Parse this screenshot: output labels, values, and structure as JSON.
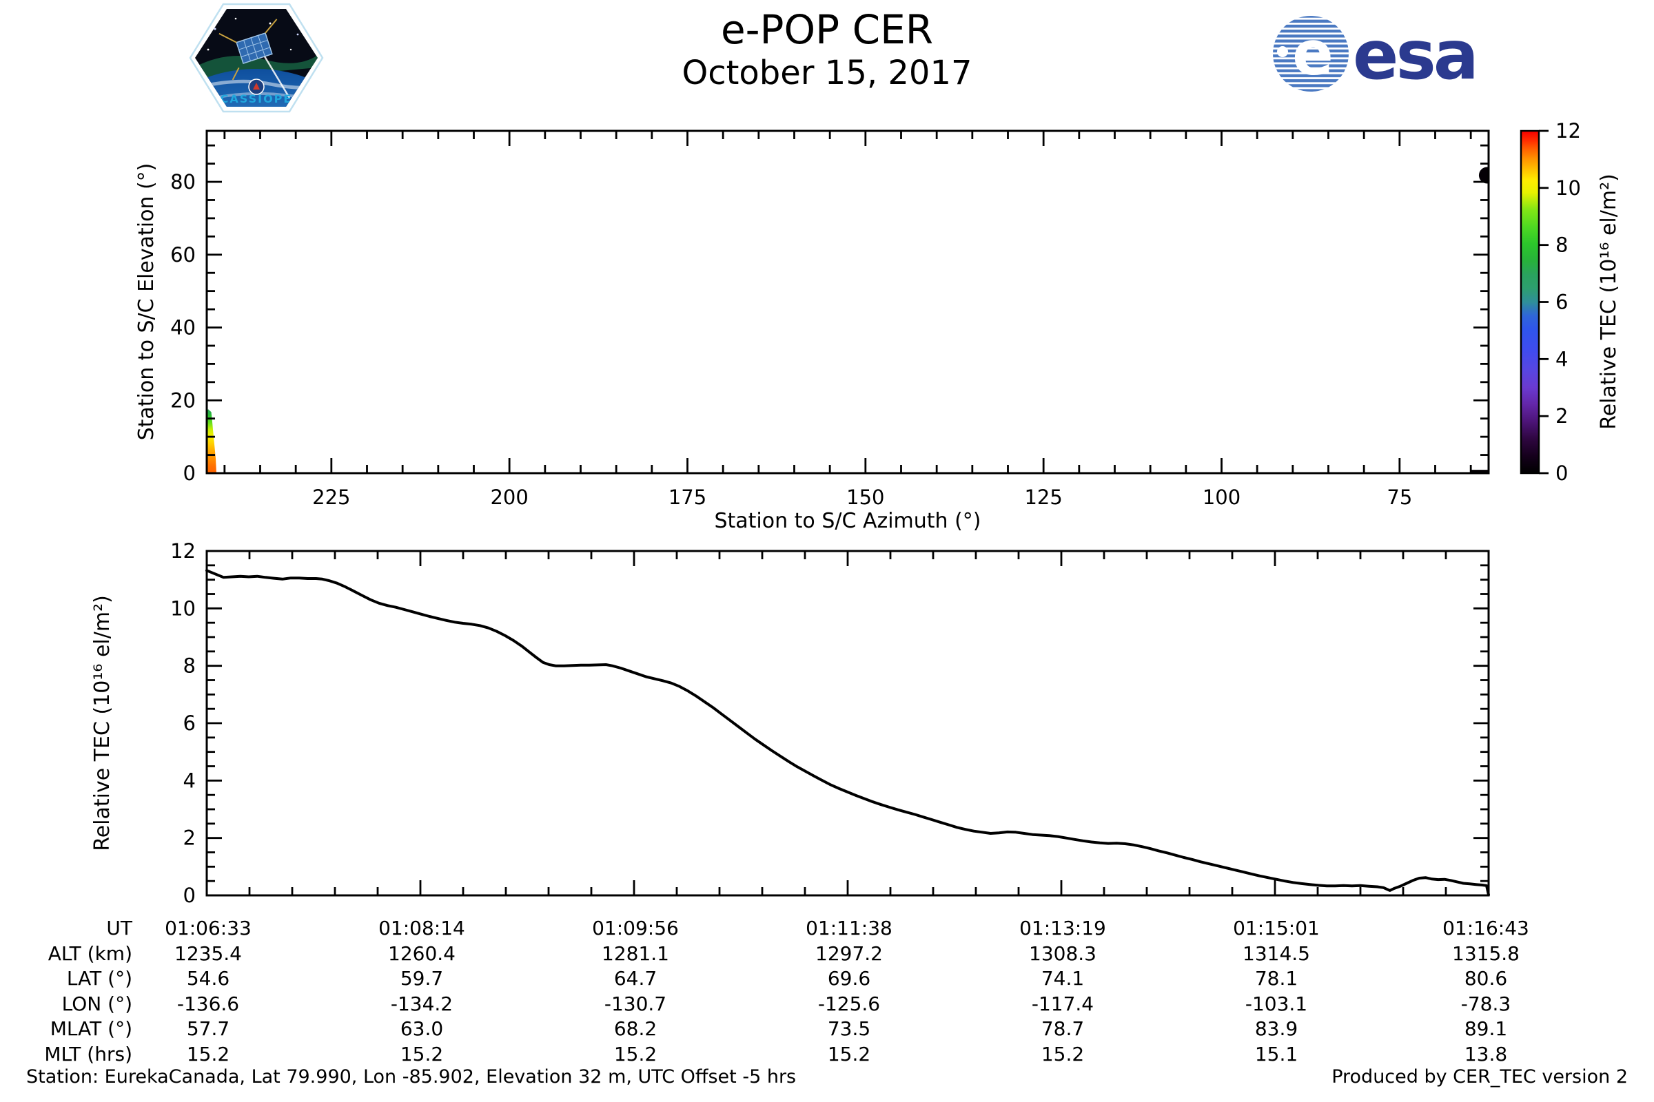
{
  "header": {
    "title": "e-POP CER",
    "subtitle": "October 15, 2017",
    "cassiope_logo": {
      "label": "CASSIOPE"
    },
    "esa_logo": {
      "text": "esa",
      "color": "#2b3a8f",
      "stripe_color": "#4a79c2"
    }
  },
  "footer": {
    "station_info": "Station: EurekaCanada, Lat 79.990, Lon -85.902, Elevation 32 m, UTC Offset -5 hrs",
    "produced_by": "Produced by CER_TEC version 2"
  },
  "chart_data": [
    {
      "type": "scatter",
      "name": "elevation-vs-azimuth",
      "xlabel": "Station to S/C Azimuth (°)",
      "ylabel": "Station to S/C Elevation (°)",
      "xlim": [
        242.5,
        62.5
      ],
      "x_reversed": true,
      "ylim": [
        0,
        94
      ],
      "xticks": [
        225,
        200,
        175,
        150,
        125,
        100,
        75
      ],
      "x_minor_step": 5,
      "yticks": [
        0,
        20,
        40,
        60,
        80
      ],
      "y_minor_step": 5,
      "grid": false,
      "series": {
        "ascending_strip": {
          "azimuth": 244.3,
          "points_el_tec": [
            [
              0,
              11.35
            ],
            [
              2,
              11.25
            ],
            [
              4,
              11.05
            ],
            [
              6,
              10.85
            ],
            [
              8,
              10.55
            ],
            [
              10,
              10.15
            ],
            [
              12,
              9.65
            ],
            [
              13.5,
              9.1
            ],
            [
              15,
              8.3
            ],
            [
              16,
              7.7
            ],
            [
              16.8,
              7.2
            ]
          ]
        },
        "end_point": {
          "azimuth": 62.7,
          "elevation": 81.8,
          "tec": 0.1
        },
        "end_segment": {
          "azimuth_from": 64.9,
          "azimuth_to": 62.6,
          "elevation": 0.45,
          "tec": 0.05
        }
      },
      "colorbar": {
        "label": "Relative TEC (10¹⁶ el/m²)",
        "min": 0,
        "max": 12,
        "ticks": [
          0,
          2,
          4,
          6,
          8,
          10,
          12
        ],
        "stops": [
          [
            0.0,
            "#000000"
          ],
          [
            0.05,
            "#15001c"
          ],
          [
            0.1,
            "#2e0640"
          ],
          [
            0.15,
            "#4c1477"
          ],
          [
            0.2,
            "#6326a8"
          ],
          [
            0.25,
            "#6a3ad0"
          ],
          [
            0.3,
            "#5846e2"
          ],
          [
            0.36,
            "#3f4cee"
          ],
          [
            0.42,
            "#2f55ec"
          ],
          [
            0.46,
            "#2f66d8"
          ],
          [
            0.5,
            "#2f8f9a"
          ],
          [
            0.54,
            "#2d9f6f"
          ],
          [
            0.58,
            "#2aa35e"
          ],
          [
            0.62,
            "#27b23b"
          ],
          [
            0.67,
            "#2cc72b"
          ],
          [
            0.72,
            "#4fd922"
          ],
          [
            0.77,
            "#83e515"
          ],
          [
            0.82,
            "#e8f200"
          ],
          [
            0.855,
            "#ffee00"
          ],
          [
            0.885,
            "#ffc400"
          ],
          [
            0.915,
            "#ff9800"
          ],
          [
            0.945,
            "#ff6400"
          ],
          [
            0.97,
            "#ff3000"
          ],
          [
            1.0,
            "#f60000"
          ]
        ]
      }
    },
    {
      "type": "line",
      "name": "relative-tec-vs-time",
      "ylabel": "Relative TEC (10¹⁶ el/m²)",
      "ylim": [
        0,
        12
      ],
      "yticks": [
        0,
        2,
        4,
        6,
        8,
        10,
        12
      ],
      "y_minor_step": 0.5,
      "x_range_seconds": [
        0,
        610
      ],
      "x_tick_labels": [
        "01:06:33",
        "01:08:14",
        "01:09:56",
        "01:11:38",
        "01:13:19",
        "01:15:01",
        "01:16:43"
      ],
      "x_minor_per_major": 5,
      "line_color": "#000000",
      "points": [
        [
          0,
          11.32
        ],
        [
          4,
          11.2
        ],
        [
          8,
          11.08
        ],
        [
          12,
          11.1
        ],
        [
          16,
          11.12
        ],
        [
          20,
          11.1
        ],
        [
          24,
          11.12
        ],
        [
          28,
          11.08
        ],
        [
          32,
          11.05
        ],
        [
          36,
          11.02
        ],
        [
          40,
          11.06
        ],
        [
          44,
          11.06
        ],
        [
          48,
          11.04
        ],
        [
          52,
          11.04
        ],
        [
          55,
          11.02
        ],
        [
          58,
          10.97
        ],
        [
          62,
          10.88
        ],
        [
          66,
          10.75
        ],
        [
          70,
          10.6
        ],
        [
          74,
          10.45
        ],
        [
          78,
          10.3
        ],
        [
          82,
          10.18
        ],
        [
          86,
          10.1
        ],
        [
          90,
          10.04
        ],
        [
          94,
          9.96
        ],
        [
          98,
          9.88
        ],
        [
          102,
          9.8
        ],
        [
          106,
          9.72
        ],
        [
          110,
          9.65
        ],
        [
          114,
          9.58
        ],
        [
          118,
          9.52
        ],
        [
          122,
          9.48
        ],
        [
          126,
          9.45
        ],
        [
          130,
          9.4
        ],
        [
          134,
          9.32
        ],
        [
          138,
          9.2
        ],
        [
          142,
          9.05
        ],
        [
          146,
          8.88
        ],
        [
          150,
          8.68
        ],
        [
          154,
          8.45
        ],
        [
          157,
          8.28
        ],
        [
          160,
          8.12
        ],
        [
          163,
          8.04
        ],
        [
          166,
          8.0
        ],
        [
          170,
          8.0
        ],
        [
          174,
          8.01
        ],
        [
          178,
          8.02
        ],
        [
          182,
          8.02
        ],
        [
          186,
          8.03
        ],
        [
          190,
          8.04
        ],
        [
          193,
          8.0
        ],
        [
          197,
          7.92
        ],
        [
          201,
          7.82
        ],
        [
          205,
          7.72
        ],
        [
          209,
          7.62
        ],
        [
          213,
          7.55
        ],
        [
          217,
          7.48
        ],
        [
          221,
          7.4
        ],
        [
          225,
          7.28
        ],
        [
          229,
          7.12
        ],
        [
          233,
          6.94
        ],
        [
          237,
          6.74
        ],
        [
          241,
          6.54
        ],
        [
          245,
          6.32
        ],
        [
          249,
          6.1
        ],
        [
          253,
          5.88
        ],
        [
          257,
          5.66
        ],
        [
          261,
          5.44
        ],
        [
          265,
          5.24
        ],
        [
          269,
          5.04
        ],
        [
          273,
          4.85
        ],
        [
          277,
          4.66
        ],
        [
          281,
          4.48
        ],
        [
          285,
          4.32
        ],
        [
          289,
          4.16
        ],
        [
          293,
          4.0
        ],
        [
          297,
          3.85
        ],
        [
          301,
          3.72
        ],
        [
          305,
          3.6
        ],
        [
          309,
          3.48
        ],
        [
          313,
          3.37
        ],
        [
          317,
          3.26
        ],
        [
          321,
          3.16
        ],
        [
          325,
          3.07
        ],
        [
          329,
          2.98
        ],
        [
          333,
          2.9
        ],
        [
          337,
          2.82
        ],
        [
          341,
          2.73
        ],
        [
          345,
          2.64
        ],
        [
          349,
          2.55
        ],
        [
          353,
          2.46
        ],
        [
          357,
          2.37
        ],
        [
          361,
          2.3
        ],
        [
          365,
          2.24
        ],
        [
          369,
          2.2
        ],
        [
          373,
          2.16
        ],
        [
          377,
          2.18
        ],
        [
          381,
          2.21
        ],
        [
          385,
          2.2
        ],
        [
          389,
          2.16
        ],
        [
          393,
          2.12
        ],
        [
          397,
          2.1
        ],
        [
          401,
          2.08
        ],
        [
          405,
          2.05
        ],
        [
          409,
          2.0
        ],
        [
          413,
          1.95
        ],
        [
          417,
          1.9
        ],
        [
          421,
          1.86
        ],
        [
          425,
          1.83
        ],
        [
          429,
          1.81
        ],
        [
          433,
          1.82
        ],
        [
          437,
          1.8
        ],
        [
          441,
          1.76
        ],
        [
          445,
          1.7
        ],
        [
          449,
          1.63
        ],
        [
          453,
          1.55
        ],
        [
          457,
          1.48
        ],
        [
          461,
          1.4
        ],
        [
          465,
          1.32
        ],
        [
          469,
          1.25
        ],
        [
          473,
          1.17
        ],
        [
          477,
          1.1
        ],
        [
          481,
          1.03
        ],
        [
          485,
          0.96
        ],
        [
          489,
          0.89
        ],
        [
          493,
          0.82
        ],
        [
          497,
          0.75
        ],
        [
          501,
          0.68
        ],
        [
          505,
          0.62
        ],
        [
          509,
          0.56
        ],
        [
          513,
          0.5
        ],
        [
          517,
          0.45
        ],
        [
          521,
          0.41
        ],
        [
          525,
          0.38
        ],
        [
          529,
          0.35
        ],
        [
          533,
          0.33
        ],
        [
          537,
          0.33
        ],
        [
          541,
          0.34
        ],
        [
          545,
          0.33
        ],
        [
          549,
          0.34
        ],
        [
          553,
          0.32
        ],
        [
          557,
          0.3
        ],
        [
          560,
          0.27
        ],
        [
          563,
          0.17
        ],
        [
          565,
          0.24
        ],
        [
          568,
          0.32
        ],
        [
          571,
          0.42
        ],
        [
          574,
          0.52
        ],
        [
          577,
          0.6
        ],
        [
          580,
          0.62
        ],
        [
          583,
          0.57
        ],
        [
          586,
          0.55
        ],
        [
          589,
          0.56
        ],
        [
          592,
          0.52
        ],
        [
          595,
          0.47
        ],
        [
          598,
          0.42
        ],
        [
          601,
          0.4
        ],
        [
          604,
          0.38
        ],
        [
          607,
          0.36
        ],
        [
          609,
          0.34
        ],
        [
          610,
          0.02
        ]
      ]
    }
  ],
  "table": {
    "rows": [
      {
        "label": "UT",
        "values": [
          "01:06:33",
          "01:08:14",
          "01:09:56",
          "01:11:38",
          "01:13:19",
          "01:15:01",
          "01:16:43"
        ]
      },
      {
        "label": "ALT (km)",
        "values": [
          "1235.4",
          "1260.4",
          "1281.1",
          "1297.2",
          "1308.3",
          "1314.5",
          "1315.8"
        ]
      },
      {
        "label": "LAT (°)",
        "values": [
          "54.6",
          "59.7",
          "64.7",
          "69.6",
          "74.1",
          "78.1",
          "80.6"
        ]
      },
      {
        "label": "LON (°)",
        "values": [
          "-136.6",
          "-134.2",
          "-130.7",
          "-125.6",
          "-117.4",
          "-103.1",
          "-78.3"
        ]
      },
      {
        "label": "MLAT (°)",
        "values": [
          "57.7",
          "63.0",
          "68.2",
          "73.5",
          "78.7",
          "83.9",
          "89.1"
        ]
      },
      {
        "label": "MLT (hrs)",
        "values": [
          "15.2",
          "15.2",
          "15.2",
          "15.2",
          "15.2",
          "15.1",
          "13.8"
        ]
      }
    ]
  }
}
